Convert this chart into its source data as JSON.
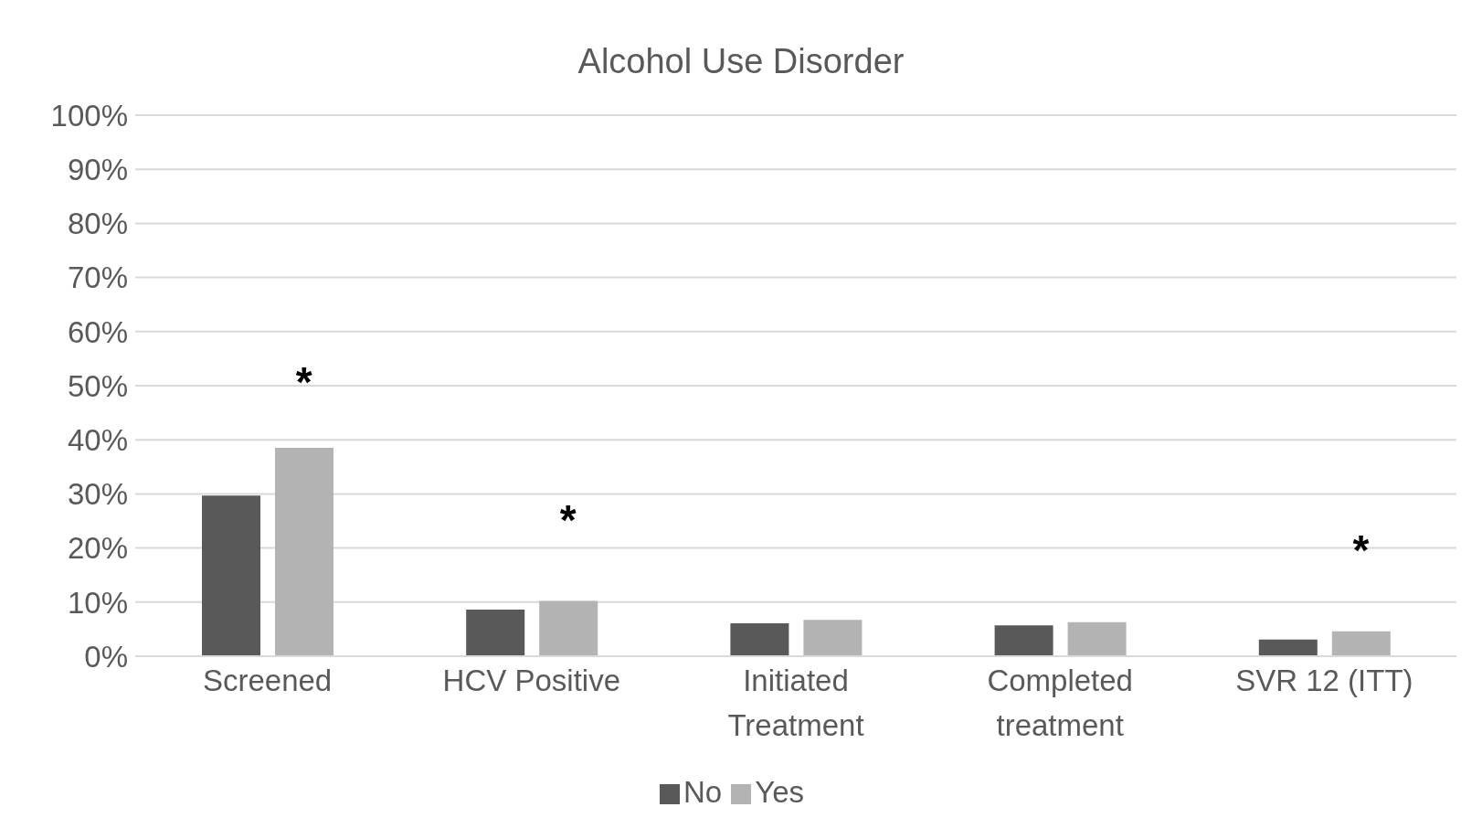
{
  "chart_data": {
    "type": "bar",
    "title": "Alcohol Use Disorder",
    "categories": [
      "Screened",
      "HCV Positive",
      "Initiated Treatment",
      "Completed treatment",
      "SVR 12 (ITT)"
    ],
    "series": [
      {
        "name": "No",
        "color": "#595959",
        "values": [
          29.7,
          8.6,
          6.1,
          5.7,
          3.1
        ]
      },
      {
        "name": "Yes",
        "color": "#b3b3b3",
        "values": [
          38.5,
          10.2,
          6.7,
          6.3,
          4.6
        ]
      }
    ],
    "ylim": [
      0,
      100
    ],
    "yticks": [
      {
        "value": 0,
        "label": "0%"
      },
      {
        "value": 10,
        "label": "10%"
      },
      {
        "value": 20,
        "label": "20%"
      },
      {
        "value": 30,
        "label": "30%"
      },
      {
        "value": 40,
        "label": "40%"
      },
      {
        "value": 50,
        "label": "50%"
      },
      {
        "value": 60,
        "label": "60%"
      },
      {
        "value": 70,
        "label": "70%"
      },
      {
        "value": 80,
        "label": "80%"
      },
      {
        "value": 90,
        "label": "90%"
      },
      {
        "value": 100,
        "label": "100%"
      }
    ],
    "grid": "y",
    "legend": "bottom",
    "annotations": [
      "*",
      "*",
      "*"
    ]
  }
}
